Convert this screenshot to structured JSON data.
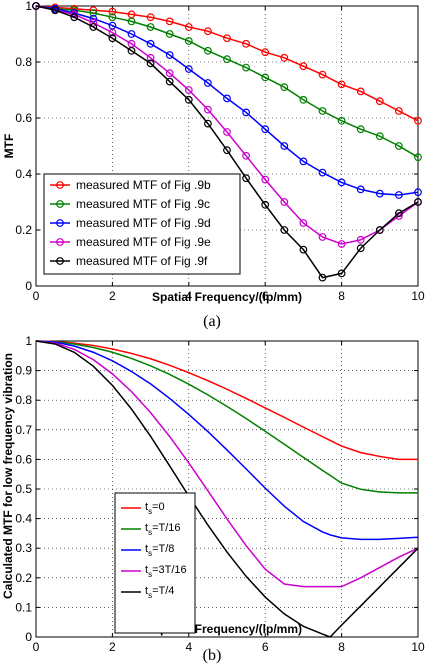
{
  "chart_data": [
    {
      "type": "line",
      "caption": "(a)",
      "xlabel": "Spatial Frequency/(lp/mm)",
      "ylabel": "MTF",
      "xlim": [
        0,
        10
      ],
      "ylim": [
        0,
        1
      ],
      "xticks": [
        "0",
        "2",
        "4",
        "6",
        "8",
        "10"
      ],
      "yticks": [
        "0",
        "0.2",
        "0.4",
        "0.6",
        "0.8",
        "1"
      ],
      "grid": true,
      "legend": "bottom-left",
      "markers": true,
      "x": [
        0,
        0.5,
        1,
        1.5,
        2,
        2.5,
        3,
        3.5,
        4,
        4.5,
        5,
        5.5,
        6,
        6.5,
        7,
        7.5,
        8,
        8.5,
        9,
        9.5,
        10
      ],
      "series": [
        {
          "name": "measured MTF of Fig .9b",
          "color": "#ff0000",
          "values": [
            1.0,
            0.995,
            0.99,
            0.985,
            0.98,
            0.97,
            0.96,
            0.945,
            0.925,
            0.91,
            0.885,
            0.865,
            0.835,
            0.815,
            0.785,
            0.755,
            0.72,
            0.695,
            0.66,
            0.625,
            0.59
          ]
        },
        {
          "name": "measured MTF of Fig .9c",
          "color": "#008000",
          "values": [
            1.0,
            0.99,
            0.985,
            0.975,
            0.96,
            0.945,
            0.925,
            0.9,
            0.875,
            0.84,
            0.81,
            0.78,
            0.745,
            0.71,
            0.665,
            0.625,
            0.59,
            0.56,
            0.535,
            0.5,
            0.46
          ]
        },
        {
          "name": "measured MTF of Fig .9d",
          "color": "#0000ff",
          "values": [
            1.0,
            0.99,
            0.975,
            0.955,
            0.93,
            0.9,
            0.865,
            0.825,
            0.775,
            0.725,
            0.67,
            0.62,
            0.56,
            0.5,
            0.445,
            0.405,
            0.37,
            0.345,
            0.33,
            0.325,
            0.335
          ]
        },
        {
          "name": "measured MTF of Fig .9e",
          "color": "#cc00cc",
          "values": [
            1.0,
            0.985,
            0.97,
            0.94,
            0.905,
            0.865,
            0.815,
            0.76,
            0.7,
            0.63,
            0.55,
            0.465,
            0.38,
            0.3,
            0.225,
            0.175,
            0.15,
            0.165,
            0.2,
            0.25,
            0.3
          ]
        },
        {
          "name": "measured MTF of Fig .9f",
          "color": "#000000",
          "values": [
            1.0,
            0.985,
            0.96,
            0.925,
            0.885,
            0.84,
            0.795,
            0.73,
            0.665,
            0.58,
            0.485,
            0.385,
            0.29,
            0.2,
            0.13,
            0.03,
            0.045,
            0.135,
            0.2,
            0.26,
            0.3
          ]
        }
      ]
    },
    {
      "type": "line",
      "caption": "(b)",
      "xlabel": "Spatial Frequency/(lp/mm)",
      "ylabel": "Calculated MTF for low frequency vibration",
      "xlim": [
        0,
        10
      ],
      "ylim": [
        0,
        1
      ],
      "xticks": [
        "0",
        "2",
        "4",
        "6",
        "8",
        "10"
      ],
      "yticks": [
        "0",
        "0.1",
        "0.2",
        "0.3",
        "0.4",
        "0.5",
        "0.6",
        "0.7",
        "0.8",
        "0.9",
        "1"
      ],
      "grid": true,
      "legend": "bottom-left",
      "markers": false,
      "x": [
        0,
        0.5,
        1,
        1.5,
        2,
        2.5,
        3,
        3.5,
        4,
        4.5,
        5,
        5.5,
        6,
        6.5,
        7,
        7.5,
        7.7,
        8,
        8.5,
        9,
        9.5,
        10
      ],
      "series": [
        {
          "name_base": "t",
          "name_sub": "s",
          "name_rest": "=0",
          "color": "#ff0000",
          "values": [
            1.0,
            0.998,
            0.993,
            0.985,
            0.973,
            0.958,
            0.94,
            0.918,
            0.893,
            0.866,
            0.837,
            0.806,
            0.774,
            0.742,
            0.709,
            0.677,
            0.664,
            0.645,
            0.623,
            0.61,
            0.6,
            0.6
          ]
        },
        {
          "name_base": "t",
          "name_sub": "s",
          "name_rest": "=T/16",
          "color": "#008000",
          "values": [
            1.0,
            0.997,
            0.99,
            0.978,
            0.962,
            0.941,
            0.916,
            0.887,
            0.854,
            0.818,
            0.779,
            0.738,
            0.695,
            0.651,
            0.607,
            0.563,
            0.546,
            0.52,
            0.499,
            0.49,
            0.487,
            0.487
          ]
        },
        {
          "name_base": "t",
          "name_sub": "s",
          "name_rest": "=T/8",
          "color": "#0000ff",
          "values": [
            1.0,
            0.996,
            0.983,
            0.962,
            0.933,
            0.897,
            0.855,
            0.806,
            0.752,
            0.694,
            0.632,
            0.568,
            0.503,
            0.442,
            0.39,
            0.355,
            0.345,
            0.335,
            0.33,
            0.33,
            0.333,
            0.337
          ]
        },
        {
          "name_base": "t",
          "name_sub": "s",
          "name_rest": "=3T/16",
          "color": "#cc00cc",
          "values": [
            1.0,
            0.993,
            0.972,
            0.937,
            0.889,
            0.829,
            0.758,
            0.677,
            0.588,
            0.494,
            0.399,
            0.309,
            0.229,
            0.179,
            0.17,
            0.17,
            0.17,
            0.17,
            0.2,
            0.235,
            0.27,
            0.3
          ]
        },
        {
          "name_base": "t",
          "name_sub": "s",
          "name_rest": "=T/4",
          "color": "#000000",
          "values": [
            1.0,
            0.99,
            0.962,
            0.915,
            0.85,
            0.77,
            0.678,
            0.578,
            0.476,
            0.378,
            0.287,
            0.205,
            0.135,
            0.078,
            0.036,
            0.01,
            0.0,
            0.04,
            0.105,
            0.17,
            0.235,
            0.3
          ]
        }
      ]
    }
  ]
}
